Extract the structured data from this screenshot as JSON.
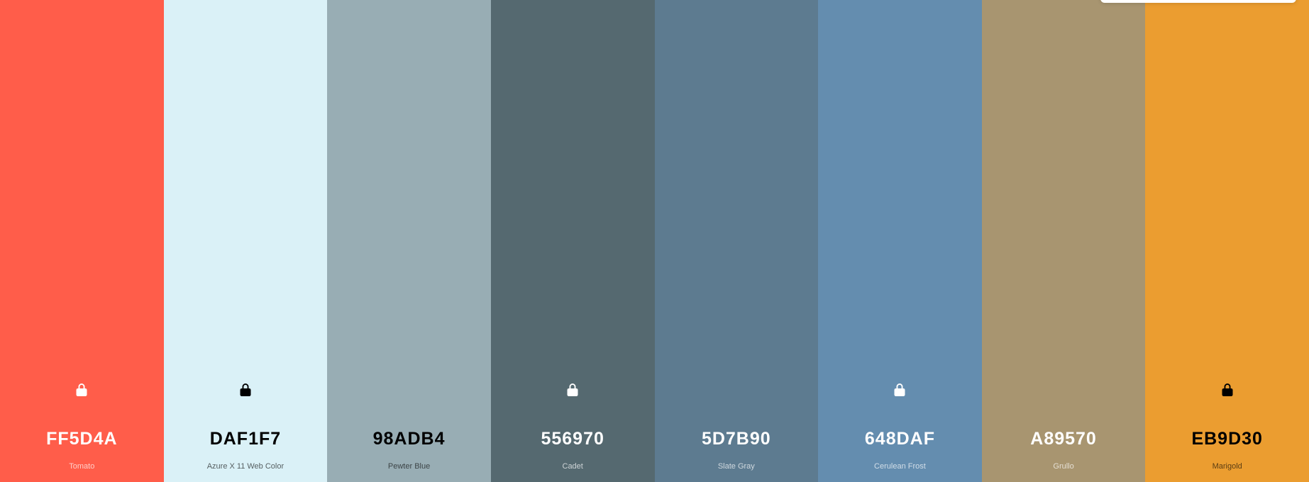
{
  "palette": {
    "swatches": [
      {
        "hex": "FF5D4A",
        "name": "Tomato",
        "color": "#FF5D4A",
        "text": "light",
        "lock_visible": true,
        "lock_icon": "lock-icon"
      },
      {
        "hex": "DAF1F7",
        "name": "Azure X 11 Web Color",
        "color": "#DAF1F7",
        "text": "dark",
        "lock_visible": true,
        "lock_icon": "lock-icon"
      },
      {
        "hex": "98ADB4",
        "name": "Pewter Blue",
        "color": "#98ADB4",
        "text": "dark",
        "lock_visible": false,
        "lock_icon": "lock-icon"
      },
      {
        "hex": "556970",
        "name": "Cadet",
        "color": "#556970",
        "text": "light",
        "lock_visible": true,
        "lock_icon": "lock-icon"
      },
      {
        "hex": "5D7B90",
        "name": "Slate Gray",
        "color": "#5D7B90",
        "text": "light",
        "lock_visible": false,
        "lock_icon": "lock-icon"
      },
      {
        "hex": "648DAF",
        "name": "Cerulean Frost",
        "color": "#648DAF",
        "text": "light",
        "lock_visible": true,
        "lock_icon": "lock-icon"
      },
      {
        "hex": "A89570",
        "name": "Grullo",
        "color": "#A89570",
        "text": "light",
        "lock_visible": false,
        "lock_icon": "lock-icon"
      },
      {
        "hex": "EB9D30",
        "name": "Marigold",
        "color": "#EB9D30",
        "text": "dark",
        "lock_visible": true,
        "lock_icon": "lock-icon"
      }
    ]
  }
}
